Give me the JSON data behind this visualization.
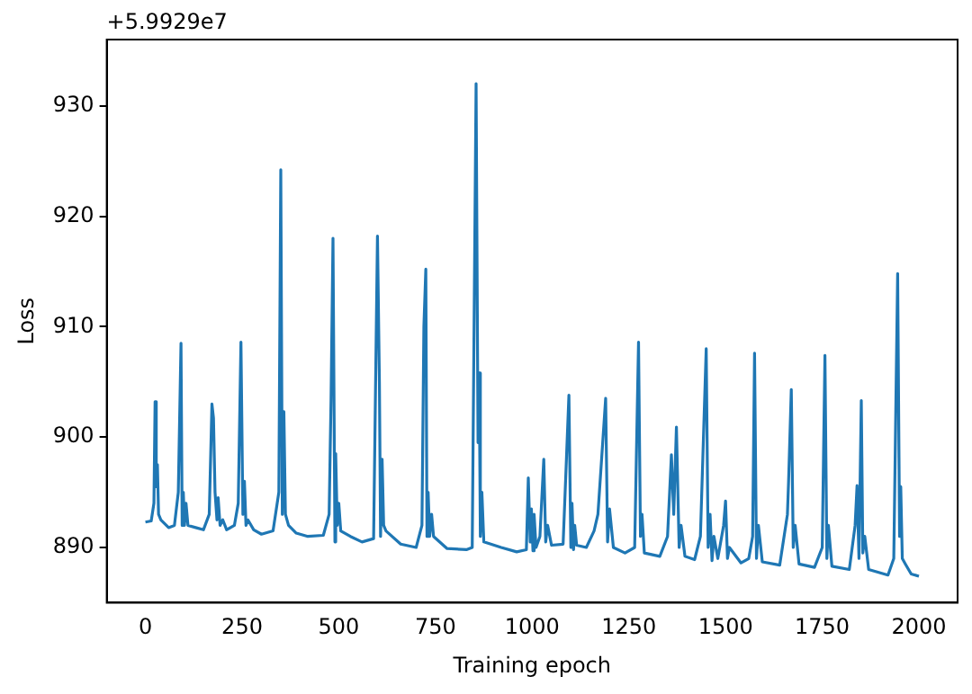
{
  "chart_data": {
    "type": "line",
    "xlabel": "Training epoch",
    "ylabel": "Loss",
    "annotations": [
      "+5.9929e7"
    ],
    "xlim": [
      -100,
      2100
    ],
    "ylim": [
      885,
      936
    ],
    "xticks": [
      0,
      250,
      500,
      750,
      1000,
      1250,
      1500,
      1750,
      2000
    ],
    "yticks": [
      890,
      900,
      910,
      920,
      930
    ],
    "grid": false,
    "legend": false,
    "marker": "none",
    "line_style": "solid",
    "series": [
      {
        "color": "#1f77b4",
        "x": [
          0,
          15,
          22,
          25,
          28,
          31,
          34,
          40,
          60,
          75,
          85,
          92,
          95,
          98,
          101,
          105,
          110,
          130,
          150,
          165,
          172,
          176,
          180,
          185,
          188,
          193,
          200,
          210,
          230,
          240,
          247,
          252,
          256,
          260,
          265,
          280,
          300,
          330,
          345,
          350,
          354,
          358,
          362,
          370,
          390,
          420,
          460,
          475,
          480,
          485,
          490,
          492,
          496,
          500,
          505,
          530,
          560,
          590,
          600,
          605,
          608,
          612,
          616,
          622,
          660,
          700,
          715,
          720,
          725,
          728,
          731,
          735,
          740,
          745,
          780,
          830,
          845,
          855,
          860,
          863,
          866,
          870,
          875,
          920,
          960,
          985,
          990,
          995,
          998,
          1002,
          1005,
          1010,
          1020,
          1030,
          1035,
          1040,
          1050,
          1080,
          1095,
          1100,
          1103,
          1107,
          1110,
          1115,
          1140,
          1160,
          1170,
          1190,
          1195,
          1200,
          1210,
          1240,
          1265,
          1275,
          1280,
          1284,
          1290,
          1330,
          1350,
          1360,
          1366,
          1373,
          1380,
          1385,
          1395,
          1420,
          1435,
          1450,
          1455,
          1460,
          1465,
          1470,
          1480,
          1495,
          1500,
          1505,
          1510,
          1540,
          1560,
          1570,
          1575,
          1580,
          1585,
          1595,
          1640,
          1660,
          1663,
          1670,
          1675,
          1680,
          1690,
          1730,
          1750,
          1757,
          1762,
          1766,
          1775,
          1820,
          1835,
          1840,
          1845,
          1851,
          1855,
          1860,
          1870,
          1920,
          1935,
          1945,
          1950,
          1953,
          1957,
          1965,
          1980,
          2000
        ],
        "values": [
          892.3,
          892.4,
          894,
          903.2,
          895.5,
          897.5,
          893,
          892.5,
          891.8,
          892,
          895,
          908.5,
          892,
          895,
          892,
          894,
          892,
          891.8,
          891.6,
          893,
          903,
          901.7,
          895,
          892.5,
          894.5,
          892,
          892.5,
          891.6,
          892,
          894,
          908.6,
          893,
          896,
          892,
          892.5,
          891.6,
          891.2,
          891.5,
          895,
          924.2,
          893,
          902.3,
          893,
          892,
          891.3,
          891,
          891.1,
          893,
          903.5,
          918,
          890.5,
          898.5,
          892,
          894,
          891.5,
          891,
          890.5,
          890.8,
          918.2,
          905,
          891,
          898,
          892,
          891.5,
          890.3,
          890,
          892,
          910,
          915.2,
          891,
          895,
          891,
          893,
          891,
          889.9,
          889.8,
          890,
          932,
          899.5,
          905.8,
          891,
          895,
          890.5,
          890,
          889.6,
          889.8,
          896.3,
          890.5,
          893.5,
          889.7,
          893,
          890,
          891,
          898,
          890.5,
          892,
          890.2,
          890.3,
          903.8,
          890,
          894,
          889.8,
          892,
          890.2,
          890,
          891.5,
          893,
          903.5,
          890.5,
          893.5,
          890,
          889.5,
          890,
          908.6,
          891,
          893,
          889.5,
          889.2,
          891,
          898.4,
          893,
          900.9,
          890,
          892,
          889.2,
          888.9,
          891,
          908,
          890,
          893,
          888.8,
          891,
          889,
          892,
          894.2,
          889,
          890,
          888.6,
          889,
          891,
          907.6,
          889,
          892,
          888.7,
          888.4,
          893,
          896,
          904.3,
          890,
          892,
          888.5,
          888.2,
          890,
          907.4,
          889,
          892,
          888.3,
          888,
          892,
          895.6,
          889,
          903.3,
          889.5,
          891,
          888,
          887.5,
          889,
          914.8,
          891,
          895.5,
          889,
          888.5,
          887.6,
          887.4
        ]
      }
    ]
  }
}
